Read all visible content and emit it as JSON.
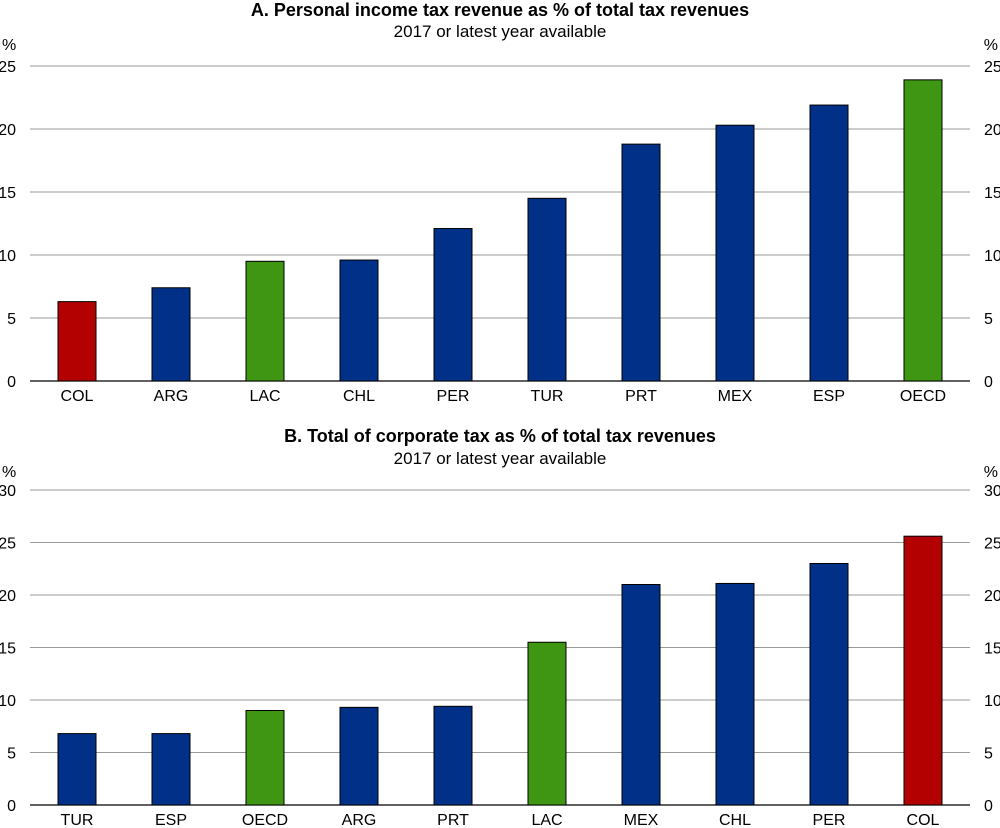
{
  "colors": {
    "default": "#003087",
    "highlight_country": "#b30000",
    "aggregate": "#3f9612"
  },
  "chart_data": [
    {
      "type": "bar",
      "title": "A. Personal income tax revenue as % of total tax revenues",
      "subtitle": "2017 or latest year available",
      "unit_left": "%",
      "unit_right": "%",
      "ylim": [
        0,
        25
      ],
      "yticks": [
        "0",
        "5",
        "10",
        "15",
        "20",
        "25"
      ],
      "grid": true,
      "categories": [
        "COL",
        "ARG",
        "LAC",
        "CHL",
        "PER",
        "TUR",
        "PRT",
        "MEX",
        "ESP",
        "OECD"
      ],
      "values": [
        6.3,
        7.4,
        9.5,
        9.6,
        12.1,
        14.5,
        18.8,
        20.3,
        21.9,
        23.9
      ],
      "bar_colors": [
        "#b30000",
        "#003087",
        "#3f9612",
        "#003087",
        "#003087",
        "#003087",
        "#003087",
        "#003087",
        "#003087",
        "#3f9612"
      ]
    },
    {
      "type": "bar",
      "title": "B. Total of corporate tax as % of total tax revenues",
      "subtitle": "2017 or latest year available",
      "unit_left": "%",
      "unit_right": "%",
      "ylim": [
        0,
        30
      ],
      "yticks": [
        "0",
        "5",
        "10",
        "15",
        "20",
        "25",
        "30"
      ],
      "grid": true,
      "categories": [
        "TUR",
        "ESP",
        "OECD",
        "ARG",
        "PRT",
        "LAC",
        "MEX",
        "CHL",
        "PER",
        "COL"
      ],
      "values": [
        6.8,
        6.8,
        9.0,
        9.3,
        9.4,
        15.5,
        21.0,
        21.1,
        23.0,
        25.6
      ],
      "bar_colors": [
        "#003087",
        "#003087",
        "#3f9612",
        "#003087",
        "#003087",
        "#3f9612",
        "#003087",
        "#003087",
        "#003087",
        "#b30000"
      ]
    }
  ]
}
